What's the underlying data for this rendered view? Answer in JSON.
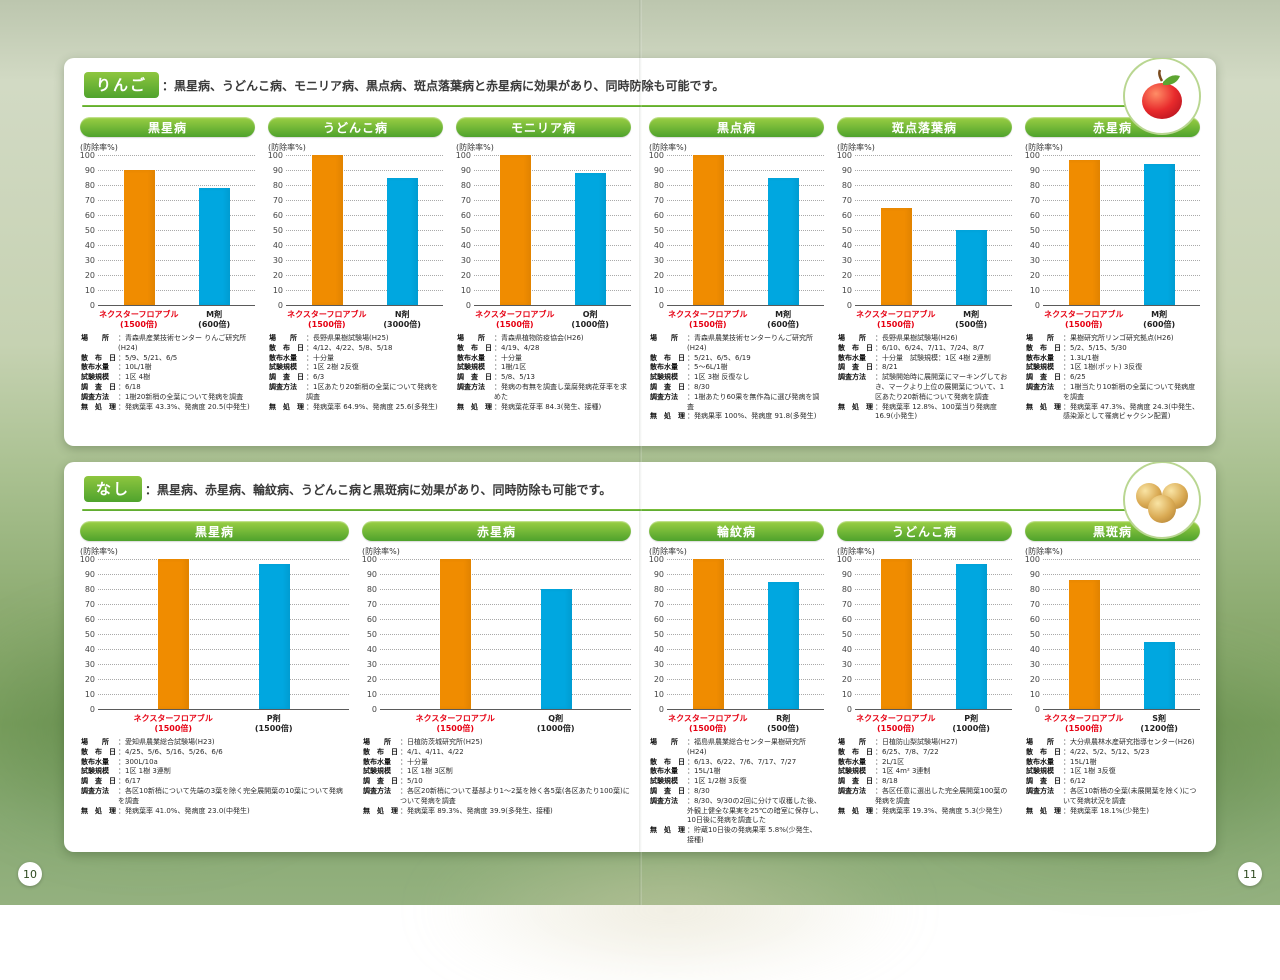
{
  "page": {
    "left_number": "10",
    "right_number": "11"
  },
  "colors": {
    "product_bar": "#f08c00",
    "comparison_bar": "#00a7e0",
    "header_green": "#5aa92f",
    "accent_red": "#e60012"
  },
  "chart_axis": {
    "type": "bar",
    "ylabel": "(防除率%)",
    "ylim": [
      0,
      100
    ],
    "ticks": [
      100,
      90,
      80,
      70,
      60,
      50,
      40,
      30,
      20,
      10,
      0
    ]
  },
  "sections": [
    {
      "name": "りんご",
      "description": "：黒星病、うどんこ病、モニリア病、黒点病、斑点落葉病と赤星病に効果があり、同時防除も可能です。",
      "fruit_icon": "apple-icon",
      "halves": [
        [
          {
            "title": "黒星病",
            "bars": [
              {
                "label": "ネクスターフロアブル",
                "dose": "(1500倍)",
                "value": 90,
                "color": "#f08c00",
                "red": true
              },
              {
                "label": "M剤",
                "dose": "(600倍)",
                "value": 78,
                "color": "#00a7e0",
                "red": false
              }
            ],
            "details": [
              {
                "k": "場　　所",
                "v": "：青森県産業技術センター りんご研究所(H24)"
              },
              {
                "k": "散　布　日",
                "v": "：5/9、5/21、6/5"
              },
              {
                "k": "散布水量",
                "v": "：10L/1樹"
              },
              {
                "k": "試験規模",
                "v": "：1区 4樹"
              },
              {
                "k": "調　査　日",
                "v": "：6/18"
              },
              {
                "k": "調査方法",
                "v": "：1樹20新梢の全葉について発病を調査"
              },
              {
                "k": "無　処　理",
                "v": "：発病葉率 43.3%、発病度 20.5(中発生)"
              }
            ]
          },
          {
            "title": "うどんこ病",
            "bars": [
              {
                "label": "ネクスターフロアブル",
                "dose": "(1500倍)",
                "value": 100,
                "color": "#f08c00",
                "red": true
              },
              {
                "label": "N剤",
                "dose": "(3000倍)",
                "value": 85,
                "color": "#00a7e0",
                "red": false
              }
            ],
            "details": [
              {
                "k": "場　　所",
                "v": "：長野県果樹試験場(H25)"
              },
              {
                "k": "散　布　日",
                "v": "：4/12、4/22、5/8、5/18"
              },
              {
                "k": "散布水量",
                "v": "：十分量"
              },
              {
                "k": "試験規模",
                "v": "：1区 2樹 2反復"
              },
              {
                "k": "調　査　日",
                "v": "：6/3"
              },
              {
                "k": "調査方法",
                "v": "：1区あたり20新梢の全葉について発病を調査"
              },
              {
                "k": "無　処　理",
                "v": "：発病葉率 64.9%、発病度 25.6(多発生)"
              }
            ]
          },
          {
            "title": "モニリア病",
            "bars": [
              {
                "label": "ネクスターフロアブル",
                "dose": "(1500倍)",
                "value": 100,
                "color": "#f08c00",
                "red": true
              },
              {
                "label": "O剤",
                "dose": "(1000倍)",
                "value": 88,
                "color": "#00a7e0",
                "red": false
              }
            ],
            "details": [
              {
                "k": "場　　所",
                "v": "：青森県植物防疫協会(H26)"
              },
              {
                "k": "散　布　日",
                "v": "：4/19、4/28"
              },
              {
                "k": "散布水量",
                "v": "：十分量"
              },
              {
                "k": "試験規模",
                "v": "：1樹/1区"
              },
              {
                "k": "調　査　日",
                "v": "：5/8、5/13"
              },
              {
                "k": "調査方法",
                "v": "：発病の有無を調査し葉腐発病花芽率を求めた"
              },
              {
                "k": "無　処　理",
                "v": "：発病葉花芽率 84.3(発生、接種)"
              }
            ]
          }
        ],
        [
          {
            "title": "黒点病",
            "bars": [
              {
                "label": "ネクスターフロアブル",
                "dose": "(1500倍)",
                "value": 100,
                "color": "#f08c00",
                "red": true
              },
              {
                "label": "M剤",
                "dose": "(600倍)",
                "value": 85,
                "color": "#00a7e0",
                "red": false
              }
            ],
            "details": [
              {
                "k": "場　　所",
                "v": "：青森県農業技術センターりんご研究所(H24)"
              },
              {
                "k": "散　布　日",
                "v": "：5/21、6/5、6/19"
              },
              {
                "k": "散布水量",
                "v": "：5〜6L/1樹"
              },
              {
                "k": "試験規模",
                "v": "：1区 3樹 反復なし"
              },
              {
                "k": "調　査　日",
                "v": "：8/30"
              },
              {
                "k": "調査方法",
                "v": "：1樹あたり60果を無作為に選び発病を調査"
              },
              {
                "k": "無　処　理",
                "v": "：発病果率 100%、発病度 91.8(多発生)"
              }
            ]
          },
          {
            "title": "斑点落葉病",
            "bars": [
              {
                "label": "ネクスターフロアブル",
                "dose": "(1500倍)",
                "value": 65,
                "color": "#f08c00",
                "red": true
              },
              {
                "label": "M剤",
                "dose": "(500倍)",
                "value": 50,
                "color": "#00a7e0",
                "red": false
              }
            ],
            "details": [
              {
                "k": "場　　所",
                "v": "：長野県果樹試験場(H26)"
              },
              {
                "k": "散　布　日",
                "v": "：6/10、6/24、7/11、7/24、8/7"
              },
              {
                "k": "散布水量",
                "v": "：十分量　試験規模：1区 4樹 2連制"
              },
              {
                "k": "調　査　日",
                "v": "：8/21"
              },
              {
                "k": "調査方法",
                "v": "：試験開始時に展開葉にマーキングしておき、マークより上位の展開葉について、1区あたり20新梢について発病を調査"
              },
              {
                "k": "無　処　理",
                "v": "：発病葉率 12.8%、100葉当り発病度16.9(小発生)"
              }
            ]
          },
          {
            "title": "赤星病",
            "bars": [
              {
                "label": "ネクスターフロアブル",
                "dose": "(1500倍)",
                "value": 97,
                "color": "#f08c00",
                "red": true
              },
              {
                "label": "M剤",
                "dose": "(600倍)",
                "value": 94,
                "color": "#00a7e0",
                "red": false
              }
            ],
            "details": [
              {
                "k": "場　　所",
                "v": "：果樹研究所リンゴ研究拠点(H26)"
              },
              {
                "k": "散　布　日",
                "v": "：5/2、5/15、5/30"
              },
              {
                "k": "散布水量",
                "v": "：1.3L/1樹"
              },
              {
                "k": "試験規模",
                "v": "：1区 1樹(ポット) 3反復"
              },
              {
                "k": "調　査　日",
                "v": "：6/25"
              },
              {
                "k": "調査方法",
                "v": "：1樹当たり10新梢の全葉について発病度を調査"
              },
              {
                "k": "無　処　理",
                "v": "：発病葉率 47.3%、発病度 24.3(中発生、感染源として罹病ビャクシン配置)"
              }
            ]
          }
        ]
      ]
    },
    {
      "name": "なし",
      "description": "：黒星病、赤星病、輪紋病、うどんこ病と黒斑病に効果があり、同時防除も可能です。",
      "fruit_icon": "pear-icon",
      "halves": [
        [
          {
            "title": "黒星病",
            "bars": [
              {
                "label": "ネクスターフロアブル",
                "dose": "(1500倍)",
                "value": 100,
                "color": "#f08c00",
                "red": true
              },
              {
                "label": "P剤",
                "dose": "(1500倍)",
                "value": 97,
                "color": "#00a7e0",
                "red": false
              }
            ],
            "details": [
              {
                "k": "場　　所",
                "v": "：愛知県農業総合試験場(H23)"
              },
              {
                "k": "散　布　日",
                "v": "：4/25、5/6、5/16、5/26、6/6"
              },
              {
                "k": "散布水量",
                "v": "：300L/10a"
              },
              {
                "k": "試験規模",
                "v": "：1区 1樹 3連制"
              },
              {
                "k": "調　査　日",
                "v": "：6/17"
              },
              {
                "k": "調査方法",
                "v": "：各区10新梢について先端の3葉を除く完全展開葉の10葉について発病を調査"
              },
              {
                "k": "無　処　理",
                "v": "：発病葉率 41.0%、発病度 23.0(中発生)"
              }
            ]
          },
          {
            "title": "赤星病",
            "bars": [
              {
                "label": "ネクスターフロアブル",
                "dose": "(1500倍)",
                "value": 100,
                "color": "#f08c00",
                "red": true
              },
              {
                "label": "Q剤",
                "dose": "(1000倍)",
                "value": 80,
                "color": "#00a7e0",
                "red": false
              }
            ],
            "details": [
              {
                "k": "場　　所",
                "v": "：日植防茨城研究所(H25)"
              },
              {
                "k": "散　布　日",
                "v": "：4/1、4/11、4/22"
              },
              {
                "k": "散布水量",
                "v": "：十分量"
              },
              {
                "k": "試験規模",
                "v": "：1区 1樹 3区制"
              },
              {
                "k": "調　査　日",
                "v": "：5/10"
              },
              {
                "k": "調査方法",
                "v": "：各区20新梢について基部より1〜2葉を除く各5葉(各区あたり100葉)について発病を調査"
              },
              {
                "k": "無　処　理",
                "v": "：発病葉率 89.3%、発病度 39.9(多発生、接種)"
              }
            ]
          }
        ],
        [
          {
            "title": "輪紋病",
            "bars": [
              {
                "label": "ネクスターフロアブル",
                "dose": "(1500倍)",
                "value": 100,
                "color": "#f08c00",
                "red": true
              },
              {
                "label": "R剤",
                "dose": "(500倍)",
                "value": 85,
                "color": "#00a7e0",
                "red": false
              }
            ],
            "details": [
              {
                "k": "場　　所",
                "v": "：福島県農業総合センター果樹研究所(H24)"
              },
              {
                "k": "散　布　日",
                "v": "：6/13、6/22、7/6、7/17、7/27"
              },
              {
                "k": "散布水量",
                "v": "：15L/1樹"
              },
              {
                "k": "試験規模",
                "v": "：1区 1/2樹 3反復"
              },
              {
                "k": "調　査　日",
                "v": "：8/30"
              },
              {
                "k": "調査方法",
                "v": "：8/30、9/30の2回に分けて収穫した後、外観上健全な果実を25℃の暗室に保存し、10日後に発病を調査した"
              },
              {
                "k": "無　処　理",
                "v": "：貯蔵10日後の発病果率 5.8%(少発生、接種)"
              }
            ]
          },
          {
            "title": "うどんこ病",
            "bars": [
              {
                "label": "ネクスターフロアブル",
                "dose": "(1500倍)",
                "value": 100,
                "color": "#f08c00",
                "red": true
              },
              {
                "label": "P剤",
                "dose": "(1000倍)",
                "value": 97,
                "color": "#00a7e0",
                "red": false
              }
            ],
            "details": [
              {
                "k": "場　　所",
                "v": "：日植防山梨試験場(H27)"
              },
              {
                "k": "散　布　日",
                "v": "：6/25、7/8、7/22"
              },
              {
                "k": "散布水量",
                "v": "：2L/1区"
              },
              {
                "k": "試験規模",
                "v": "：1区 4m² 3連制"
              },
              {
                "k": "調　査　日",
                "v": "：8/18"
              },
              {
                "k": "調査方法",
                "v": "：各区任意に選出した完全展開葉100葉の発病を調査"
              },
              {
                "k": "無　処　理",
                "v": "：発病葉率 19.3%、発病度 5.3(少発生)"
              }
            ]
          },
          {
            "title": "黒斑病",
            "bars": [
              {
                "label": "ネクスターフロアブル",
                "dose": "(1500倍)",
                "value": 86,
                "color": "#f08c00",
                "red": true
              },
              {
                "label": "S剤",
                "dose": "(1200倍)",
                "value": 45,
                "color": "#00a7e0",
                "red": false
              }
            ],
            "details": [
              {
                "k": "場　　所",
                "v": "：大分県農林水産研究指導センター(H26)"
              },
              {
                "k": "散　布　日",
                "v": "：4/22、5/2、5/12、5/23"
              },
              {
                "k": "散布水量",
                "v": "：15L/1樹"
              },
              {
                "k": "試験規模",
                "v": "：1区 1樹 3反復"
              },
              {
                "k": "調　査　日",
                "v": "：6/12"
              },
              {
                "k": "調査方法",
                "v": "：各区10新梢の全葉(未展開葉を除く)について発病状況を調査"
              },
              {
                "k": "無　処　理",
                "v": "：発病葉率 18.1%(少発生)"
              }
            ]
          }
        ]
      ]
    }
  ],
  "chart_data": [
    {
      "section": "りんご",
      "type": "bar",
      "title": "黒星病",
      "categories": [
        "ネクスターフロアブル(1500倍)",
        "M剤(600倍)"
      ],
      "values": [
        90,
        78
      ],
      "ylabel": "防除率%",
      "ylim": [
        0,
        100
      ]
    },
    {
      "section": "りんご",
      "type": "bar",
      "title": "うどんこ病",
      "categories": [
        "ネクスターフロアブル(1500倍)",
        "N剤(3000倍)"
      ],
      "values": [
        100,
        85
      ],
      "ylabel": "防除率%",
      "ylim": [
        0,
        100
      ]
    },
    {
      "section": "りんご",
      "type": "bar",
      "title": "モニリア病",
      "categories": [
        "ネクスターフロアブル(1500倍)",
        "O剤(1000倍)"
      ],
      "values": [
        100,
        88
      ],
      "ylabel": "防除率%",
      "ylim": [
        0,
        100
      ]
    },
    {
      "section": "りんご",
      "type": "bar",
      "title": "黒点病",
      "categories": [
        "ネクスターフロアブル(1500倍)",
        "M剤(600倍)"
      ],
      "values": [
        100,
        85
      ],
      "ylabel": "防除率%",
      "ylim": [
        0,
        100
      ]
    },
    {
      "section": "りんご",
      "type": "bar",
      "title": "斑点落葉病",
      "categories": [
        "ネクスターフロアブル(1500倍)",
        "M剤(500倍)"
      ],
      "values": [
        65,
        50
      ],
      "ylabel": "防除率%",
      "ylim": [
        0,
        100
      ]
    },
    {
      "section": "りんご",
      "type": "bar",
      "title": "赤星病",
      "categories": [
        "ネクスターフロアブル(1500倍)",
        "M剤(600倍)"
      ],
      "values": [
        97,
        94
      ],
      "ylabel": "防除率%",
      "ylim": [
        0,
        100
      ]
    },
    {
      "section": "なし",
      "type": "bar",
      "title": "黒星病",
      "categories": [
        "ネクスターフロアブル(1500倍)",
        "P剤(1500倍)"
      ],
      "values": [
        100,
        97
      ],
      "ylabel": "防除率%",
      "ylim": [
        0,
        100
      ]
    },
    {
      "section": "なし",
      "type": "bar",
      "title": "赤星病",
      "categories": [
        "ネクスターフロアブル(1500倍)",
        "Q剤(1000倍)"
      ],
      "values": [
        100,
        80
      ],
      "ylabel": "防除率%",
      "ylim": [
        0,
        100
      ]
    },
    {
      "section": "なし",
      "type": "bar",
      "title": "輪紋病",
      "categories": [
        "ネクスターフロアブル(1500倍)",
        "R剤(500倍)"
      ],
      "values": [
        100,
        85
      ],
      "ylabel": "防除率%",
      "ylim": [
        0,
        100
      ]
    },
    {
      "section": "なし",
      "type": "bar",
      "title": "うどんこ病",
      "categories": [
        "ネクスターフロアブル(1500倍)",
        "P剤(1000倍)"
      ],
      "values": [
        100,
        97
      ],
      "ylabel": "防除率%",
      "ylim": [
        0,
        100
      ]
    },
    {
      "section": "なし",
      "type": "bar",
      "title": "黒斑病",
      "categories": [
        "ネクスターフロアブル(1500倍)",
        "S剤(1200倍)"
      ],
      "values": [
        86,
        45
      ],
      "ylabel": "防除率%",
      "ylim": [
        0,
        100
      ]
    }
  ]
}
